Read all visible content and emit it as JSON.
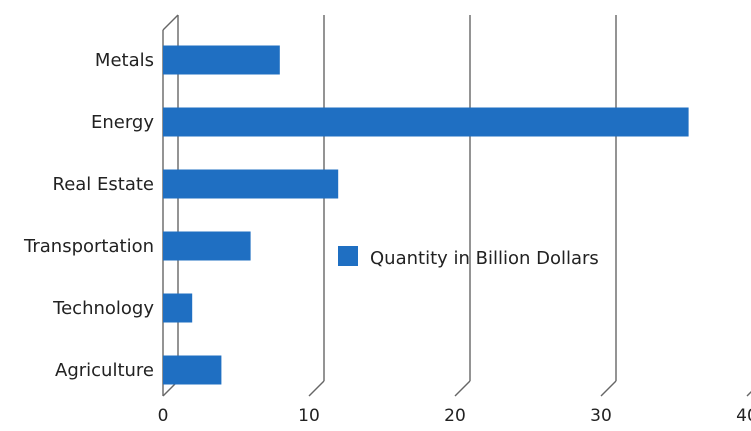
{
  "chart_data": {
    "type": "bar",
    "orientation": "horizontal",
    "style": "3d-floor-perspective",
    "categories": [
      "Agriculture",
      "Technology",
      "Transportation",
      "Real Estate",
      "Energy",
      "Metals"
    ],
    "series": [
      {
        "name": "Quantity in Billion Dollars",
        "values": [
          4,
          2,
          6,
          12,
          36,
          8
        ]
      }
    ],
    "xlim": [
      0,
      40
    ],
    "xticks": [
      0,
      10,
      20,
      30,
      40
    ],
    "grid": true,
    "legend": {
      "placement": "center-right-inside",
      "label": "Quantity in Billion Dollars"
    },
    "colors": {
      "bar": "#1f6fc2",
      "grid": "#666666",
      "text": "#222222"
    }
  }
}
